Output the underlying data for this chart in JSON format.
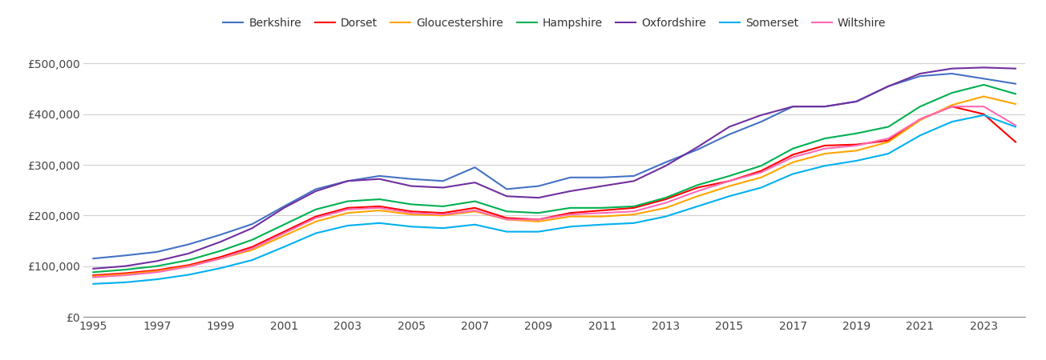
{
  "series": {
    "Berkshire": {
      "color": "#4472C4",
      "values": [
        115000,
        121000,
        128000,
        143000,
        162000,
        183000,
        218000,
        252000,
        268000,
        278000,
        272000,
        268000,
        295000,
        252000,
        258000,
        275000,
        275000,
        278000,
        305000,
        330000,
        360000,
        385000,
        415000,
        415000,
        425000,
        455000,
        475000,
        480000,
        470000,
        460000
      ]
    },
    "Dorset": {
      "color": "#FF0000",
      "values": [
        82000,
        86000,
        92000,
        102000,
        118000,
        138000,
        168000,
        198000,
        215000,
        218000,
        208000,
        205000,
        215000,
        195000,
        192000,
        205000,
        210000,
        215000,
        232000,
        255000,
        268000,
        288000,
        320000,
        338000,
        340000,
        348000,
        390000,
        415000,
        400000,
        345000
      ]
    },
    "Gloucestershire": {
      "color": "#FFA500",
      "values": [
        80000,
        84000,
        90000,
        100000,
        115000,
        132000,
        160000,
        188000,
        205000,
        210000,
        202000,
        200000,
        208000,
        192000,
        188000,
        198000,
        198000,
        202000,
        215000,
        238000,
        258000,
        275000,
        305000,
        322000,
        328000,
        345000,
        388000,
        418000,
        435000,
        420000
      ]
    },
    "Hampshire": {
      "color": "#00B050",
      "values": [
        88000,
        93000,
        100000,
        112000,
        130000,
        152000,
        182000,
        212000,
        228000,
        232000,
        222000,
        218000,
        228000,
        208000,
        205000,
        215000,
        215000,
        218000,
        235000,
        260000,
        278000,
        298000,
        332000,
        352000,
        362000,
        375000,
        415000,
        442000,
        458000,
        440000
      ]
    },
    "Oxfordshire": {
      "color": "#7030A0",
      "values": [
        95000,
        100000,
        110000,
        125000,
        148000,
        175000,
        215000,
        248000,
        268000,
        272000,
        258000,
        255000,
        265000,
        238000,
        235000,
        248000,
        258000,
        268000,
        298000,
        335000,
        375000,
        398000,
        415000,
        415000,
        425000,
        455000,
        480000,
        490000,
        492000,
        490000
      ]
    },
    "Somerset": {
      "color": "#00B0F0",
      "values": [
        65000,
        68000,
        74000,
        83000,
        96000,
        112000,
        138000,
        165000,
        180000,
        185000,
        178000,
        175000,
        182000,
        168000,
        168000,
        178000,
        182000,
        185000,
        198000,
        218000,
        238000,
        255000,
        282000,
        298000,
        308000,
        322000,
        358000,
        385000,
        398000,
        375000
      ]
    },
    "Wiltshire": {
      "color": "#FF69B4",
      "values": [
        78000,
        82000,
        88000,
        99000,
        115000,
        135000,
        165000,
        195000,
        212000,
        215000,
        205000,
        202000,
        210000,
        192000,
        192000,
        202000,
        205000,
        208000,
        225000,
        248000,
        268000,
        285000,
        315000,
        332000,
        338000,
        352000,
        390000,
        415000,
        415000,
        378000
      ]
    }
  },
  "years": [
    1995,
    1996,
    1997,
    1998,
    1999,
    2000,
    2001,
    2002,
    2003,
    2004,
    2005,
    2006,
    2007,
    2008,
    2009,
    2010,
    2011,
    2012,
    2013,
    2014,
    2015,
    2016,
    2017,
    2018,
    2019,
    2020,
    2021,
    2022,
    2023,
    2024
  ],
  "ylim": [
    0,
    540000
  ],
  "yticks": [
    0,
    100000,
    200000,
    300000,
    400000,
    500000
  ],
  "xticks": [
    1995,
    1997,
    1999,
    2001,
    2003,
    2005,
    2007,
    2009,
    2011,
    2013,
    2015,
    2017,
    2019,
    2021,
    2023
  ],
  "background_color": "#ffffff",
  "grid_color": "#d0d0d0",
  "linewidth": 1.5
}
